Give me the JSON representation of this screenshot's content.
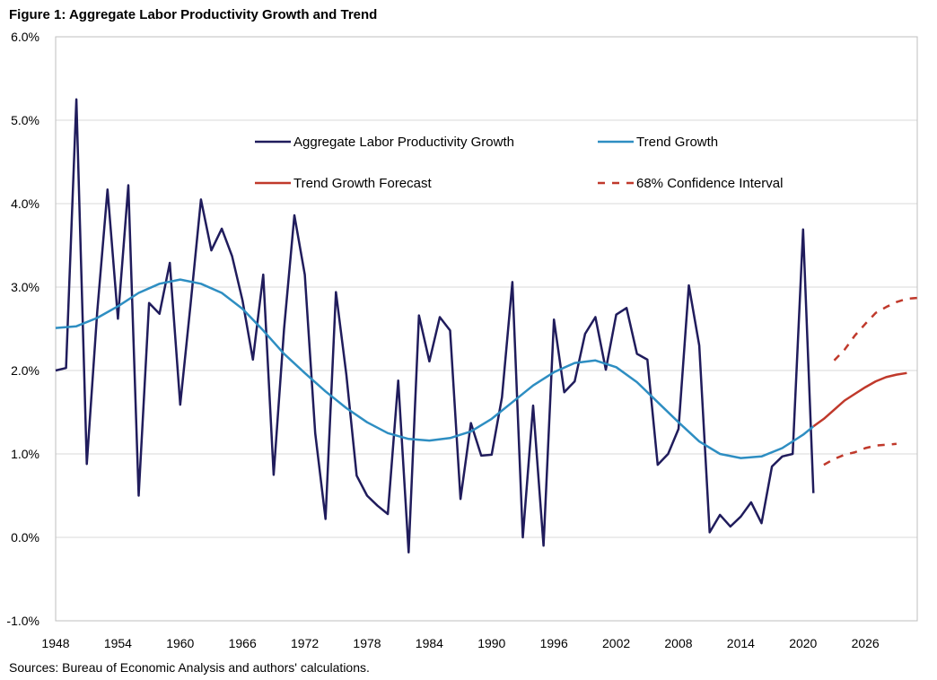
{
  "figure": {
    "title": "Figure 1: Aggregate Labor Productivity Growth and Trend",
    "source": "Sources: Bureau of Economic Analysis and authors' calculations."
  },
  "chart_data": {
    "type": "line",
    "title": "Figure 1: Aggregate Labor Productivity Growth and Trend",
    "xlabel": "",
    "ylabel": "",
    "xlim": [
      1948,
      2031
    ],
    "ylim": [
      -1.0,
      6.0
    ],
    "grid": true,
    "legend_position": "top-center",
    "x_ticks": [
      1948,
      1954,
      1960,
      1966,
      1972,
      1978,
      1984,
      1990,
      1996,
      2002,
      2008,
      2014,
      2020,
      2026
    ],
    "y_ticks": [
      {
        "value": 6.0,
        "label": "6.0%"
      },
      {
        "value": 5.0,
        "label": "5.0%"
      },
      {
        "value": 4.0,
        "label": "4.0%"
      },
      {
        "value": 3.0,
        "label": "3.0%"
      },
      {
        "value": 2.0,
        "label": "2.0%"
      },
      {
        "value": 1.0,
        "label": "1.0%"
      },
      {
        "value": 0.0,
        "label": "0.0%"
      },
      {
        "value": -1.0,
        "label": "-1.0%"
      }
    ],
    "series": [
      {
        "name": "Aggregate Labor Productivity Growth",
        "color": "#201c5c",
        "style": "solid",
        "x": [
          1948,
          1949,
          1950,
          1951,
          1952,
          1953,
          1954,
          1955,
          1956,
          1957,
          1958,
          1959,
          1960,
          1961,
          1962,
          1963,
          1964,
          1965,
          1966,
          1967,
          1968,
          1969,
          1970,
          1971,
          1972,
          1973,
          1974,
          1975,
          1976,
          1977,
          1978,
          1979,
          1980,
          1981,
          1982,
          1983,
          1984,
          1985,
          1986,
          1987,
          1988,
          1989,
          1990,
          1991,
          1992,
          1993,
          1994,
          1995,
          1996,
          1997,
          1998,
          1999,
          2000,
          2001,
          2002,
          2003,
          2004,
          2005,
          2006,
          2007,
          2008,
          2009,
          2010,
          2011,
          2012,
          2013,
          2014,
          2015,
          2016,
          2017,
          2018,
          2019,
          2020,
          2021
        ],
        "values": [
          2.0,
          2.03,
          5.25,
          0.88,
          2.7,
          4.17,
          2.62,
          4.22,
          0.5,
          2.81,
          2.68,
          3.29,
          1.59,
          2.8,
          4.05,
          3.44,
          3.7,
          3.37,
          2.84,
          2.13,
          3.15,
          0.75,
          2.5,
          3.86,
          3.15,
          1.25,
          0.22,
          2.94,
          1.95,
          0.74,
          0.5,
          0.38,
          0.28,
          1.88,
          -0.18,
          2.66,
          2.11,
          2.64,
          2.48,
          0.46,
          1.37,
          0.98,
          0.99,
          1.68,
          3.06,
          0.0,
          1.58,
          -0.1,
          2.61,
          1.74,
          1.87,
          2.44,
          2.64,
          2.01,
          2.67,
          2.75,
          2.2,
          2.13,
          0.87,
          1.0,
          1.3,
          3.02,
          2.3,
          0.06,
          0.27,
          0.13,
          0.25,
          0.42,
          0.17,
          0.85,
          0.97,
          1.0,
          3.69,
          0.53
        ]
      },
      {
        "name": "Trend Growth",
        "color": "#2e8ec2",
        "style": "solid",
        "x": [
          1948,
          1950,
          1952,
          1954,
          1956,
          1958,
          1960,
          1962,
          1964,
          1966,
          1968,
          1970,
          1972,
          1974,
          1976,
          1978,
          1980,
          1982,
          1984,
          1986,
          1988,
          1990,
          1992,
          1994,
          1996,
          1998,
          2000,
          2002,
          2004,
          2006,
          2008,
          2010,
          2012,
          2014,
          2016,
          2018,
          2020,
          2021
        ],
        "values": [
          2.51,
          2.53,
          2.63,
          2.77,
          2.93,
          3.04,
          3.09,
          3.04,
          2.93,
          2.74,
          2.48,
          2.2,
          1.97,
          1.75,
          1.55,
          1.38,
          1.25,
          1.18,
          1.16,
          1.19,
          1.27,
          1.42,
          1.62,
          1.82,
          1.98,
          2.09,
          2.12,
          2.04,
          1.86,
          1.62,
          1.38,
          1.15,
          1.0,
          0.95,
          0.97,
          1.07,
          1.23,
          1.33
        ]
      },
      {
        "name": "Trend Growth Forecast",
        "color": "#c0392b",
        "style": "solid",
        "x": [
          2021,
          2022,
          2023,
          2024,
          2025,
          2026,
          2027,
          2028,
          2029,
          2030
        ],
        "values": [
          1.33,
          1.42,
          1.53,
          1.64,
          1.72,
          1.8,
          1.87,
          1.92,
          1.95,
          1.97
        ]
      },
      {
        "name": "68% Confidence Interval",
        "color": "#c0392b",
        "style": "dashed",
        "x": [
          2023,
          2024,
          2025,
          2026,
          2027,
          2028,
          2029,
          2030,
          2031
        ],
        "values": [
          2.12,
          2.25,
          2.42,
          2.56,
          2.69,
          2.76,
          2.82,
          2.86,
          2.87
        ]
      },
      {
        "name": "68% Confidence Interval (lower)",
        "color": "#c0392b",
        "style": "dashed",
        "x": [
          2022,
          2023,
          2024,
          2025,
          2026,
          2027,
          2028,
          2029
        ],
        "values": [
          0.87,
          0.94,
          0.99,
          1.02,
          1.07,
          1.1,
          1.11,
          1.12
        ]
      }
    ],
    "legend": [
      {
        "label": "Aggregate Labor Productivity Growth",
        "color": "#201c5c",
        "style": "solid"
      },
      {
        "label": "Trend Growth",
        "color": "#2e8ec2",
        "style": "solid"
      },
      {
        "label": "Trend Growth Forecast",
        "color": "#c0392b",
        "style": "solid"
      },
      {
        "label": "68% Confidence Interval",
        "color": "#c0392b",
        "style": "dashed"
      }
    ]
  }
}
